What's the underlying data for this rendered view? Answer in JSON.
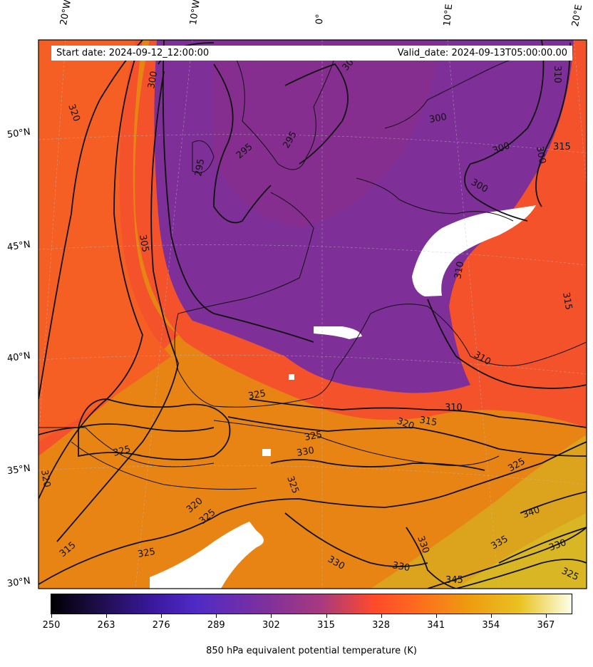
{
  "header": {
    "start_date": "Start date: 2024-09-12_12:00:00",
    "valid_date": "Valid_date: 2024-09-13T05:00:00.00"
  },
  "longitude_labels": [
    "20°W",
    "10°W",
    "0°",
    "10°E",
    "20°E"
  ],
  "latitude_labels": [
    "50°N",
    "45°N",
    "40°N",
    "35°N",
    "30°N"
  ],
  "contour_labels": [
    "320",
    "300",
    "295",
    "295",
    "295",
    "300",
    "300",
    "300",
    "300",
    "310",
    "310",
    "305",
    "300",
    "315",
    "310",
    "325",
    "325",
    "320",
    "315",
    "310",
    "325",
    "330",
    "325",
    "325",
    "320",
    "325",
    "325",
    "315",
    "330",
    "330",
    "330",
    "335",
    "340",
    "345",
    "330",
    "325",
    "315",
    "320"
  ],
  "colorbar": {
    "ticks": [
      "250",
      "263",
      "276",
      "289",
      "302",
      "315",
      "328",
      "341",
      "354",
      "367"
    ],
    "label": "850 hPa equivalent potential temperature (K)",
    "colormap": "CMRmap-like (black → indigo → purple → red-orange → gold → cream)"
  },
  "colors": {
    "cold_purple": "#7a2f9a",
    "mid_red": "#f04a2a",
    "warm_orange": "#e9820f",
    "hot_gold": "#d9b21e",
    "missing": "#ffffff"
  }
}
